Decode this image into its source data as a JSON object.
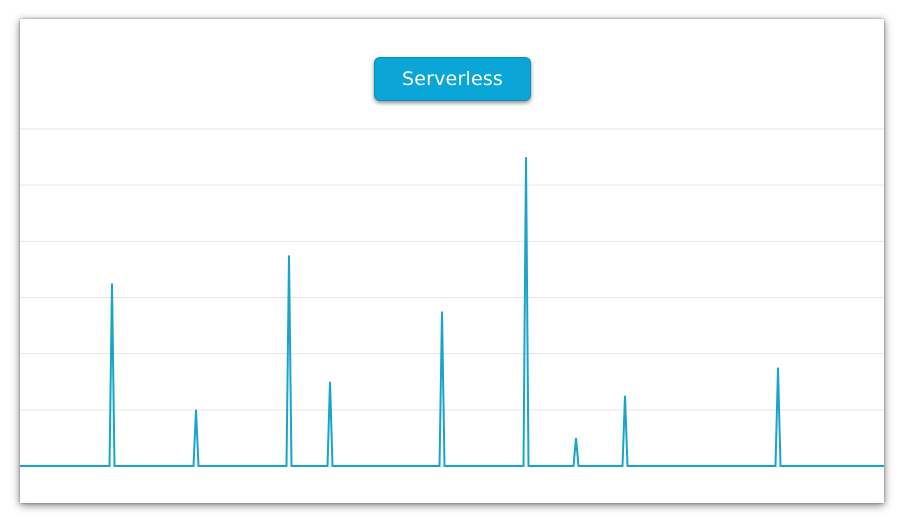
{
  "header": {
    "title_label": "Serverless"
  },
  "colors": {
    "line": "#1aa3cc",
    "grid": "#e6e6e6",
    "button_bg": "#0aa6d8"
  },
  "chart_data": {
    "type": "line",
    "title": "",
    "xlabel": "",
    "ylabel": "",
    "grid": true,
    "ylim": [
      0,
      6
    ],
    "xlim": [
      0,
      864
    ],
    "gridline_count": 6,
    "baseline": 0,
    "series": [
      {
        "name": "",
        "spikes": [
          {
            "x": 92,
            "y": 3.25
          },
          {
            "x": 176,
            "y": 1.0
          },
          {
            "x": 269,
            "y": 3.75
          },
          {
            "x": 310,
            "y": 1.5
          },
          {
            "x": 422,
            "y": 2.75
          },
          {
            "x": 506,
            "y": 5.5
          },
          {
            "x": 556,
            "y": 0.5
          },
          {
            "x": 605,
            "y": 1.25
          },
          {
            "x": 758,
            "y": 1.75
          }
        ]
      }
    ]
  }
}
